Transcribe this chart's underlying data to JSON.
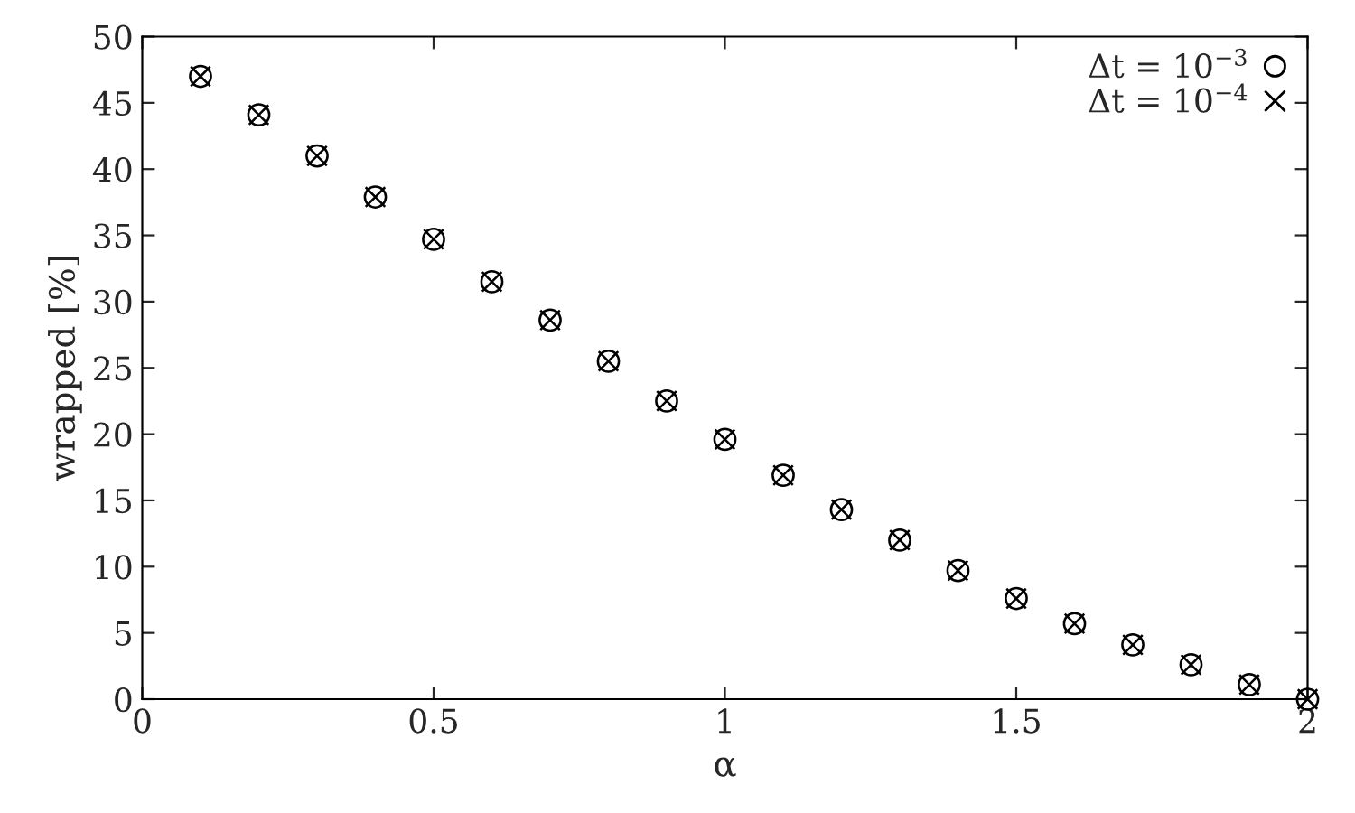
{
  "chart_data": {
    "type": "scatter",
    "xlabel": "α",
    "ylabel": "wrapped [%]",
    "x": [
      0.1,
      0.2,
      0.3,
      0.4,
      0.5,
      0.6,
      0.7,
      0.8,
      0.9,
      1.0,
      1.1,
      1.2,
      1.3,
      1.4,
      1.5,
      1.6,
      1.7,
      1.8,
      1.9,
      2.0
    ],
    "series": [
      {
        "name": "Δt = 10$^{−3}$",
        "color": "#000000",
        "marker": "circle",
        "values": [
          47.0,
          44.1,
          41.0,
          37.9,
          34.7,
          31.5,
          28.6,
          25.5,
          22.5,
          19.6,
          16.9,
          14.3,
          12.0,
          9.7,
          7.6,
          5.7,
          4.1,
          2.6,
          1.1,
          0
        ]
      },
      {
        "name": "Δt = 10$^{−4}$",
        "color": "#000000",
        "marker": "cross",
        "values": [
          47.0,
          44.1,
          41.0,
          37.9,
          34.7,
          31.5,
          28.6,
          25.5,
          22.5,
          19.6,
          16.9,
          14.3,
          12.0,
          9.7,
          7.6,
          5.7,
          4.1,
          2.6,
          1.1,
          0
        ]
      }
    ],
    "xlim": [
      0,
      2
    ],
    "xticks": [
      0,
      0.5,
      1,
      1.5,
      2
    ],
    "ylim": [
      0,
      50
    ],
    "yticks": [
      0,
      5,
      10,
      15,
      20,
      25,
      30,
      35,
      40,
      45,
      50
    ],
    "grid": false,
    "legend": "top right"
  }
}
